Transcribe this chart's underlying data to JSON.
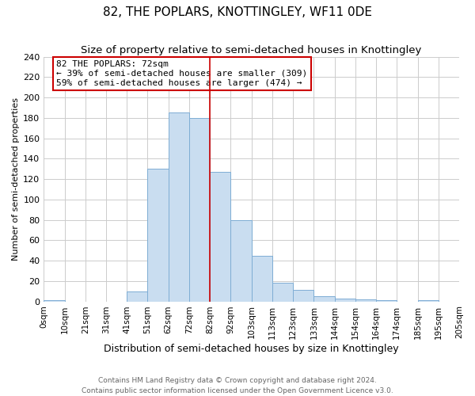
{
  "title": "82, THE POPLARS, KNOTTINGLEY, WF11 0DE",
  "subtitle": "Size of property relative to semi-detached houses in Knottingley",
  "xlabel": "Distribution of semi-detached houses by size in Knottingley",
  "ylabel": "Number of semi-detached properties",
  "footer_line1": "Contains HM Land Registry data © Crown copyright and database right 2024.",
  "footer_line2": "Contains public sector information licensed under the Open Government Licence v3.0.",
  "bin_labels": [
    "0sqm",
    "10sqm",
    "21sqm",
    "31sqm",
    "41sqm",
    "51sqm",
    "62sqm",
    "72sqm",
    "82sqm",
    "92sqm",
    "103sqm",
    "113sqm",
    "123sqm",
    "133sqm",
    "144sqm",
    "154sqm",
    "164sqm",
    "174sqm",
    "185sqm",
    "195sqm",
    "205sqm"
  ],
  "bar_values": [
    1,
    0,
    0,
    0,
    10,
    130,
    185,
    180,
    127,
    80,
    45,
    18,
    11,
    5,
    3,
    2,
    1,
    0,
    1,
    0
  ],
  "bar_color": "#c9ddf0",
  "bar_edge_color": "#7eadd4",
  "highlight_bin_idx": 7,
  "highlight_line_color": "#cc0000",
  "annotation_line1": "82 THE POPLARS: 72sqm",
  "annotation_line2": "← 39% of semi-detached houses are smaller (309)",
  "annotation_line3": "59% of semi-detached houses are larger (474) →",
  "annotation_box_edge_color": "#cc0000",
  "ylim": [
    0,
    240
  ],
  "yticks": [
    0,
    20,
    40,
    60,
    80,
    100,
    120,
    140,
    160,
    180,
    200,
    220,
    240
  ],
  "background_color": "#ffffff",
  "grid_color": "#cccccc",
  "title_fontsize": 11,
  "subtitle_fontsize": 9.5,
  "ylabel_fontsize": 8,
  "xlabel_fontsize": 9,
  "ytick_fontsize": 8,
  "xtick_fontsize": 7.5,
  "footer_fontsize": 6.5,
  "annot_fontsize": 8
}
